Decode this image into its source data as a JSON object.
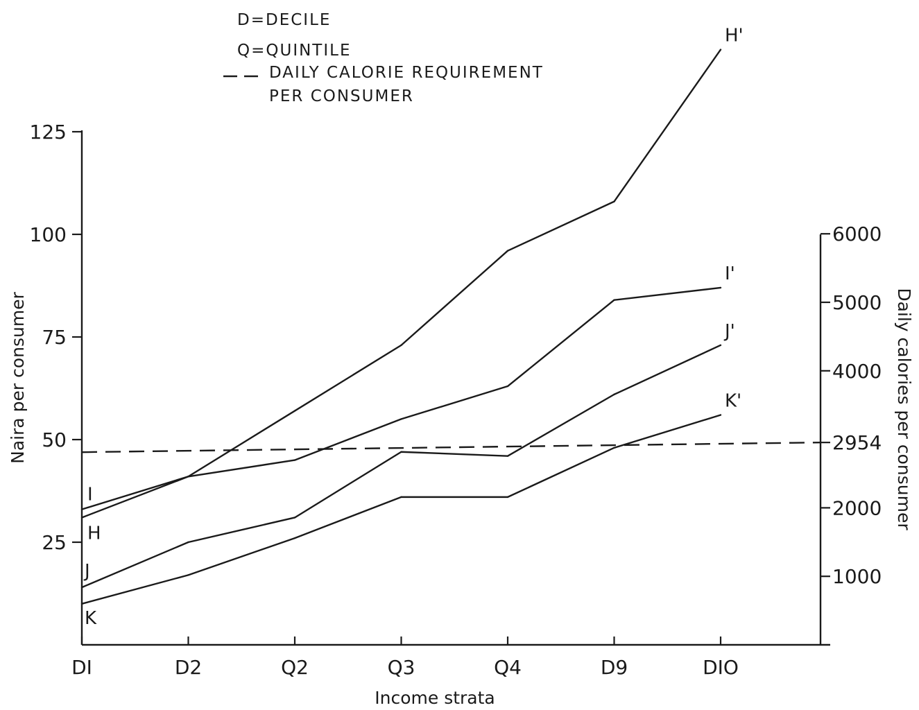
{
  "chart_data": {
    "type": "line",
    "xlabel": "Income strata",
    "ylabel": "Naira per consumer",
    "y2label": "Daily calories per consumer",
    "categories": [
      "D1",
      "D2",
      "Q2",
      "Q3",
      "Q4",
      "D9",
      "D10"
    ],
    "category_labels": [
      "DI",
      "D2",
      "Q2",
      "Q3",
      "Q4",
      "D9",
      "DIO"
    ],
    "ylim": [
      0,
      125
    ],
    "y_ticks": [
      25,
      50,
      75,
      100,
      125
    ],
    "y_tick_labels": [
      "25",
      "50",
      "75",
      "100",
      "125"
    ],
    "y2lim": [
      0,
      6000
    ],
    "y2_ticks": [
      1000,
      2000,
      2954,
      4000,
      5000,
      6000
    ],
    "y2_tick_labels": [
      "1000",
      "2000",
      "2954",
      "4000",
      "5000",
      "6000"
    ],
    "legend": [
      "D=DECILE",
      "Q=QUINTILE",
      "DAILY CALORIE REQUIREMENT",
      "PER CONSUMER"
    ],
    "legend_placement": "top-center",
    "grid": false,
    "reference_line": {
      "axis": "y2",
      "value": 2954,
      "style": "dashed"
    },
    "series": [
      {
        "start_label": "H",
        "end_label": "H'",
        "values": [
          31,
          41,
          57,
          73,
          96,
          108,
          145
        ]
      },
      {
        "start_label": "I",
        "end_label": "I'",
        "values": [
          33,
          41,
          45,
          55,
          63,
          84,
          87
        ]
      },
      {
        "start_label": "J",
        "end_label": "J'",
        "values": [
          14,
          25,
          31,
          47,
          46,
          61,
          73
        ]
      },
      {
        "start_label": "K",
        "end_label": "K'",
        "values": [
          10,
          17,
          26,
          36,
          36,
          48,
          56
        ]
      }
    ]
  }
}
